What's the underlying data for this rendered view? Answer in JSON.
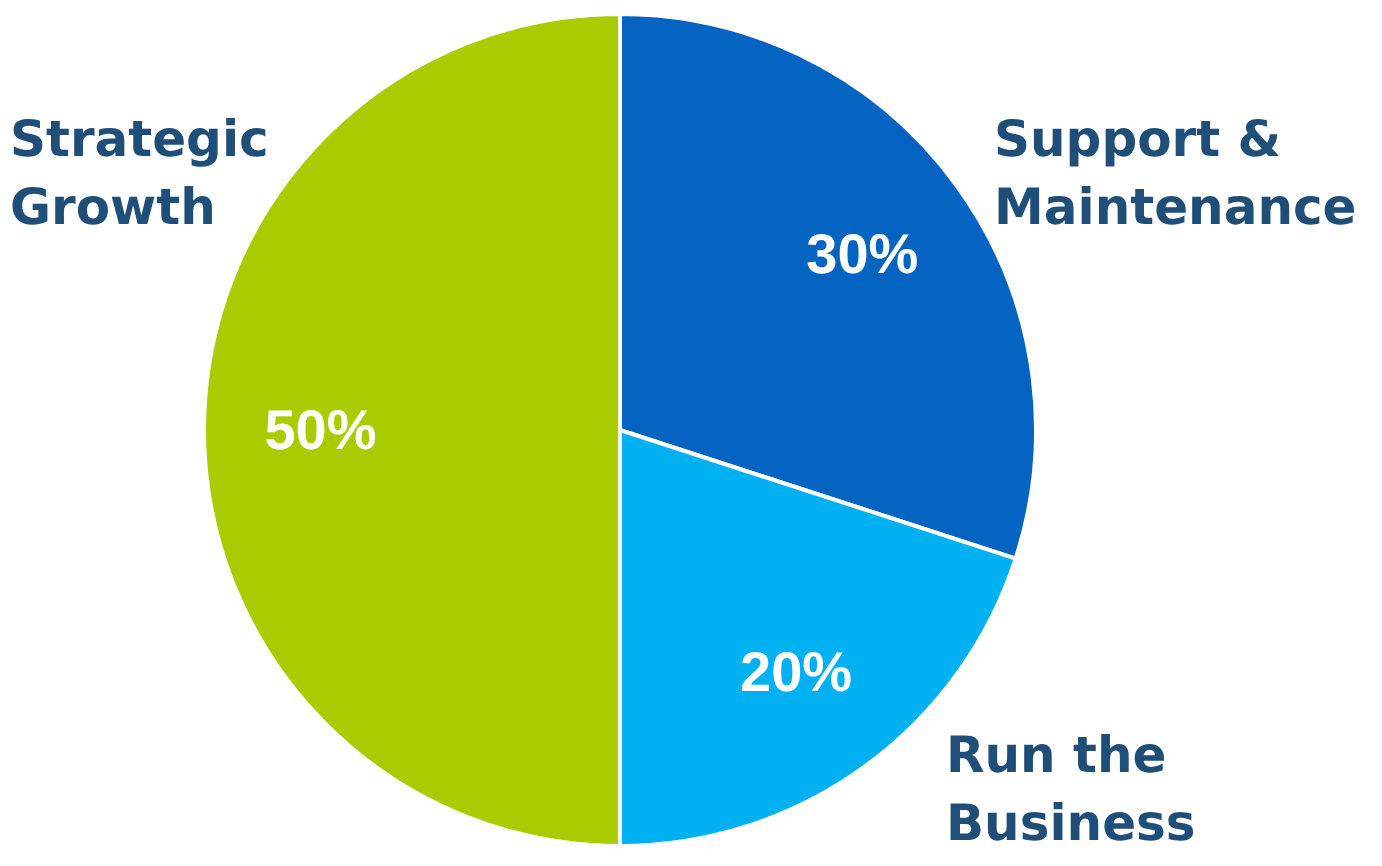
{
  "chart_data": {
    "type": "pie",
    "categories": [
      "Support & Maintenance",
      "Run the Business",
      "Strategic Growth"
    ],
    "values": [
      30,
      20,
      50
    ],
    "colors": [
      "#0563c1",
      "#00b0f0",
      "#a9cc00"
    ],
    "value_labels": [
      "30%",
      "20%",
      "50%"
    ]
  }
}
